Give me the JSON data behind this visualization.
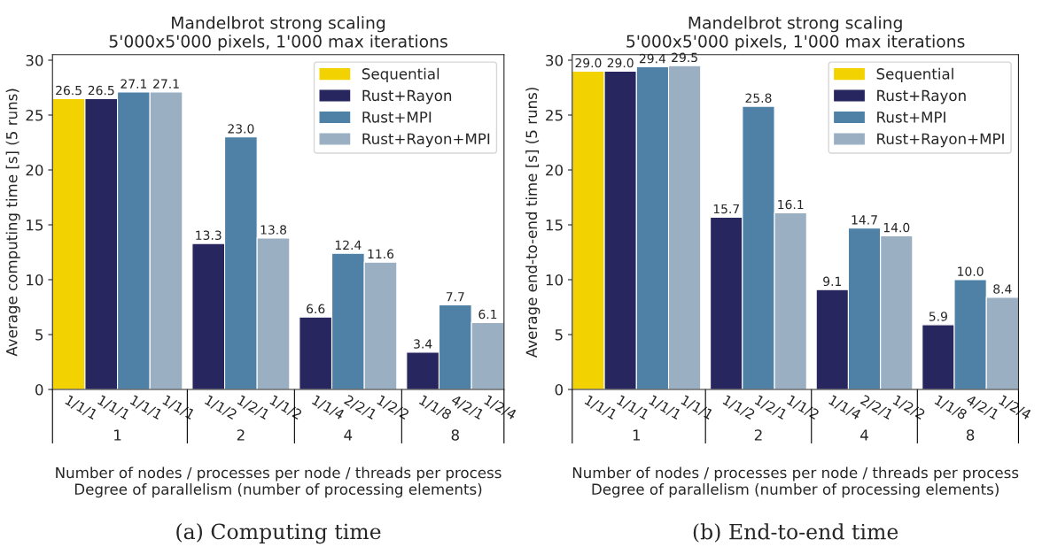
{
  "chart_data": [
    {
      "type": "bar",
      "title": "Mandelbrot strong scaling\n5'000x5'000 pixels, 1'000 max iterations",
      "ylabel": "Average computing time [s] (5 runs)",
      "xlabel": "Number of nodes / processes per node / threads per process\nDegree of parallelism (number of processing elements)",
      "categories": [
        "1/1/1",
        "1/1/1",
        "1/1/1",
        "1/1/1",
        "1/1/2",
        "1/2/1",
        "1/1/2",
        "1/1/4",
        "2/2/1",
        "1/2/2",
        "1/1/8",
        "4/2/1",
        "1/2/4"
      ],
      "series": [
        {
          "name": "Sequential",
          "color": "#f2d200",
          "values": [
            26.5,
            null,
            null,
            null,
            null,
            null,
            null,
            null,
            null,
            null,
            null,
            null,
            null
          ],
          "value_labels": [
            "26.5",
            null,
            null,
            null,
            null,
            null,
            null,
            null,
            null,
            null,
            null,
            null,
            null
          ]
        },
        {
          "name": "Rust+Rayon",
          "color": "#27265e",
          "values": [
            null,
            26.5,
            null,
            null,
            13.3,
            null,
            null,
            6.6,
            null,
            null,
            3.4,
            null,
            null
          ],
          "value_labels": [
            null,
            "26.5",
            null,
            null,
            "13.3",
            null,
            null,
            "6.6",
            null,
            null,
            "3.4",
            null,
            null
          ]
        },
        {
          "name": "Rust+MPI",
          "color": "#4f81a6",
          "values": [
            null,
            null,
            27.1,
            null,
            null,
            23,
            null,
            null,
            12.4,
            null,
            null,
            7.7,
            null
          ],
          "value_labels": [
            null,
            null,
            "27.1",
            null,
            null,
            "23.0",
            null,
            null,
            "12.4",
            null,
            null,
            "7.7",
            null
          ]
        },
        {
          "name": "Rust+Rayon+MPI",
          "color": "#9aafc2",
          "values": [
            null,
            null,
            null,
            27.1,
            null,
            null,
            13.8,
            null,
            null,
            11.6,
            null,
            null,
            6.1
          ],
          "value_labels": [
            null,
            null,
            null,
            "27.1",
            null,
            null,
            "13.8",
            null,
            null,
            "11.6",
            null,
            null,
            "6.1"
          ]
        }
      ],
      "ylim": [
        0,
        30.5
      ],
      "yticks": [
        0,
        5,
        10,
        15,
        20,
        25,
        30
      ],
      "legend": "top right",
      "grid": false,
      "annotations": [
        "1",
        "2",
        "4",
        "8",
        "(a) Computing time"
      ]
    },
    {
      "type": "bar",
      "title": "Mandelbrot strong scaling\n5'000x5'000 pixels, 1'000 max iterations",
      "ylabel": "Average end-to-end time [s] (5 runs)",
      "xlabel": "Number of nodes / processes per node / threads per process\nDegree of parallelism (number of processing elements)",
      "categories": [
        "1/1/1",
        "1/1/1",
        "1/1/1",
        "1/1/1",
        "1/1/2",
        "1/2/1",
        "1/1/2",
        "1/1/4",
        "2/2/1",
        "1/2/2",
        "1/1/8",
        "4/2/1",
        "1/2/4"
      ],
      "series": [
        {
          "name": "Sequential",
          "color": "#f2d200",
          "values": [
            29,
            null,
            null,
            null,
            null,
            null,
            null,
            null,
            null,
            null,
            null,
            null,
            null
          ],
          "value_labels": [
            "29.0",
            null,
            null,
            null,
            null,
            null,
            null,
            null,
            null,
            null,
            null,
            null,
            null
          ]
        },
        {
          "name": "Rust+Rayon",
          "color": "#27265e",
          "values": [
            null,
            29,
            null,
            null,
            15.7,
            null,
            null,
            9.1,
            null,
            null,
            5.9,
            null,
            null
          ],
          "value_labels": [
            null,
            "29.0",
            null,
            null,
            "15.7",
            null,
            null,
            "9.1",
            null,
            null,
            "5.9",
            null,
            null
          ]
        },
        {
          "name": "Rust+MPI",
          "color": "#4f81a6",
          "values": [
            null,
            null,
            29.4,
            null,
            null,
            25.8,
            null,
            null,
            14.7,
            null,
            null,
            10,
            null
          ],
          "value_labels": [
            null,
            null,
            "29.4",
            null,
            null,
            "25.8",
            null,
            null,
            "14.7",
            null,
            null,
            "10.0",
            null
          ]
        },
        {
          "name": "Rust+Rayon+MPI",
          "color": "#9aafc2",
          "values": [
            null,
            null,
            null,
            29.5,
            null,
            null,
            16.1,
            null,
            null,
            14,
            null,
            null,
            8.4
          ],
          "value_labels": [
            null,
            null,
            null,
            "29.5",
            null,
            null,
            "16.1",
            null,
            null,
            "14.0",
            null,
            null,
            "8.4"
          ]
        }
      ],
      "ylim": [
        0,
        30.5
      ],
      "yticks": [
        0,
        5,
        10,
        15,
        20,
        25,
        30
      ],
      "legend": "top right",
      "grid": false,
      "annotations": [
        "1",
        "2",
        "4",
        "8",
        "(b) End-to-end time"
      ]
    }
  ]
}
